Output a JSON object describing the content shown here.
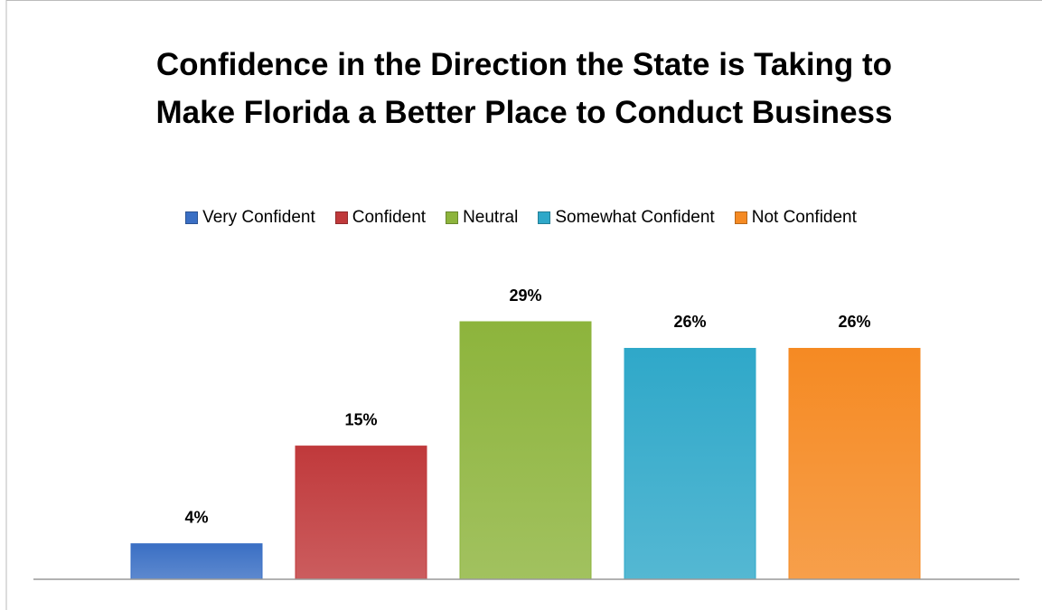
{
  "chart_data": {
    "type": "bar",
    "title": "Confidence in the Direction the State is Taking to Make Florida a Better Place to Conduct Business",
    "series": [
      {
        "name": "Very Confident",
        "color": "#3a6fc4",
        "values": [
          4
        ],
        "value_labels": [
          "4%"
        ]
      },
      {
        "name": "Confident",
        "color": "#c0393b",
        "values": [
          15
        ],
        "value_labels": [
          "15%"
        ]
      },
      {
        "name": "Neutral",
        "color": "#8db43c",
        "values": [
          29
        ],
        "value_labels": [
          "29%"
        ]
      },
      {
        "name": "Somewhat Confident",
        "color": "#2fa8c9",
        "values": [
          26
        ],
        "value_labels": [
          "26%"
        ]
      },
      {
        "name": "Not Confident",
        "color": "#f58a23",
        "values": [
          26
        ],
        "value_labels": [
          "26%"
        ]
      }
    ],
    "legend": "top"
  }
}
